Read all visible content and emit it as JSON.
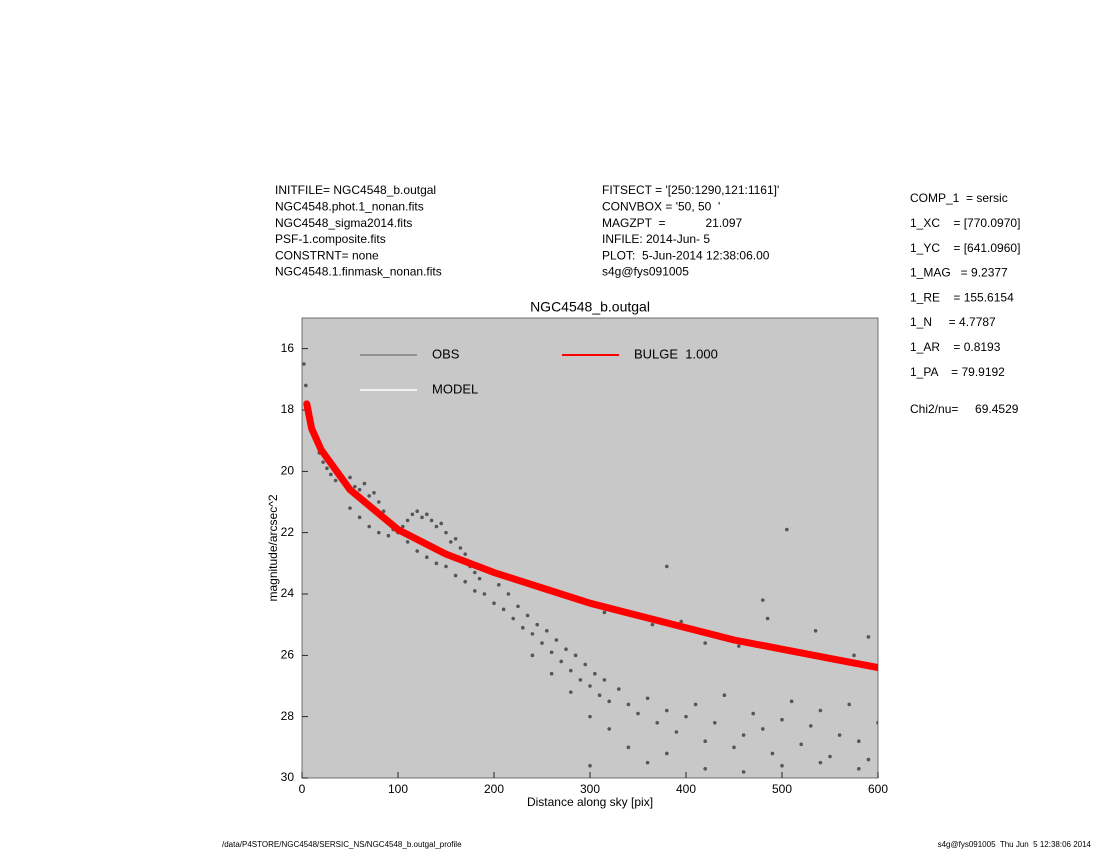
{
  "header": {
    "left": [
      "INITFILE= NGC4548_b.outgal",
      "NGC4548.phot.1_nonan.fits",
      "NGC4548_sigma2014.fits",
      "PSF-1.composite.fits",
      "CONSTRNT= none",
      "NGC4548.1.finmask_nonan.fits"
    ],
    "middle": [
      "FITSECT = '[250:1290,121:1161]'",
      "CONVBOX = '50, 50  '",
      "MAGZPT  =            21.097",
      "INFILE: 2014-Jun- 5",
      "PLOT:  5-Jun-2014 12:38:06.00",
      "s4g@fys091005"
    ],
    "right": [
      "COMP_1  = sersic",
      "1_XC    = [770.0970]",
      "1_YC    = [641.0960]",
      "1_MAG   = 9.2377",
      "1_RE    = 155.6154",
      "1_N     = 4.7787",
      "1_AR    = 0.8193",
      "1_PA    = 79.9192"
    ],
    "chi2": "Chi2/nu=     69.4529"
  },
  "footer": {
    "left": "/data/P4STORE/NGC4548/SERSIC_NS/NGC4548_b.outgal_profile",
    "right": "s4g@fys091005  Thu Jun  5 12:38:06 2014"
  },
  "chart_data": {
    "type": "scatter",
    "title": "NGC4548_b.outgal",
    "xlabel": "Distance along sky [pix]",
    "ylabel": "magnitude/arcsec^2",
    "xlim": [
      0,
      600
    ],
    "ylim": [
      15,
      30
    ],
    "y_inverted": true,
    "xticks": [
      0,
      100,
      200,
      300,
      400,
      500,
      600
    ],
    "yticks": [
      16,
      18,
      20,
      22,
      24,
      26,
      28,
      30
    ],
    "background": "#c8c8c8",
    "series": [
      {
        "name": "OBS",
        "color": "#555555",
        "marker": "dot",
        "x": [
          2,
          4,
          6,
          8,
          10,
          14,
          18,
          22,
          26,
          30,
          35,
          40,
          45,
          50,
          55,
          60,
          65,
          70,
          75,
          80,
          85,
          90,
          95,
          100,
          105,
          110,
          115,
          120,
          125,
          130,
          135,
          140,
          145,
          150,
          155,
          160,
          165,
          170,
          175,
          180,
          185,
          50,
          60,
          70,
          80,
          90,
          110,
          120,
          130,
          140,
          150,
          160,
          170,
          180,
          190,
          200,
          205,
          210,
          215,
          220,
          225,
          230,
          235,
          240,
          245,
          250,
          255,
          260,
          265,
          270,
          275,
          280,
          285,
          290,
          295,
          300,
          305,
          310,
          315,
          320,
          330,
          340,
          350,
          360,
          370,
          380,
          390,
          400,
          410,
          420,
          430,
          440,
          450,
          460,
          470,
          480,
          490,
          500,
          510,
          520,
          530,
          540,
          550,
          560,
          570,
          580,
          590,
          600,
          240,
          260,
          280,
          300,
          320,
          340,
          360,
          380,
          300,
          420,
          460,
          500,
          540,
          580,
          315,
          365,
          395,
          420,
          455,
          485,
          535,
          575,
          590,
          505,
          380,
          480
        ],
        "values": [
          16.5,
          17.2,
          17.8,
          18.2,
          18.6,
          19.0,
          19.4,
          19.7,
          19.9,
          20.1,
          20.3,
          20.2,
          20.4,
          20.2,
          20.5,
          20.6,
          20.4,
          20.8,
          20.7,
          21.0,
          21.3,
          21.7,
          21.9,
          22.0,
          21.8,
          21.6,
          21.4,
          21.3,
          21.5,
          21.4,
          21.6,
          21.8,
          21.7,
          22.0,
          22.3,
          22.2,
          22.5,
          22.7,
          23.1,
          23.3,
          23.5,
          21.2,
          21.5,
          21.8,
          22.0,
          22.1,
          22.3,
          22.6,
          22.8,
          23.0,
          23.1,
          23.4,
          23.6,
          23.9,
          24.0,
          24.3,
          23.7,
          24.5,
          24.0,
          24.8,
          24.4,
          25.1,
          24.7,
          25.3,
          25.0,
          25.6,
          25.2,
          25.9,
          25.5,
          26.2,
          25.8,
          26.5,
          26.0,
          26.8,
          26.3,
          27.0,
          26.6,
          27.3,
          26.8,
          27.5,
          27.1,
          27.6,
          27.9,
          27.4,
          28.2,
          27.8,
          28.5,
          28.0,
          27.6,
          28.8,
          28.2,
          27.3,
          29.0,
          28.6,
          27.9,
          28.4,
          29.2,
          28.1,
          27.5,
          28.9,
          28.3,
          27.8,
          29.3,
          28.6,
          27.6,
          28.8,
          29.4,
          28.2,
          26.0,
          26.6,
          27.2,
          28.0,
          28.4,
          29.0,
          29.5,
          29.2,
          29.6,
          29.7,
          29.8,
          29.6,
          29.5,
          29.7,
          24.6,
          25.0,
          24.9,
          25.6,
          25.7,
          24.8,
          25.2,
          26.0,
          25.4,
          21.9,
          23.1,
          24.2
        ]
      },
      {
        "name": "MODEL",
        "color": "#ffffff",
        "marker": "line",
        "x": [],
        "values": []
      },
      {
        "name": "BULGE  1.000",
        "color": "#ff0000",
        "marker": "band",
        "x": [
          5,
          10,
          20,
          50,
          100,
          150,
          200,
          250,
          300,
          350,
          400,
          450,
          500,
          550,
          600
        ],
        "values": [
          17.8,
          18.6,
          19.3,
          20.6,
          21.9,
          22.7,
          23.3,
          23.8,
          24.3,
          24.7,
          25.1,
          25.5,
          25.8,
          26.1,
          26.4
        ]
      }
    ]
  }
}
